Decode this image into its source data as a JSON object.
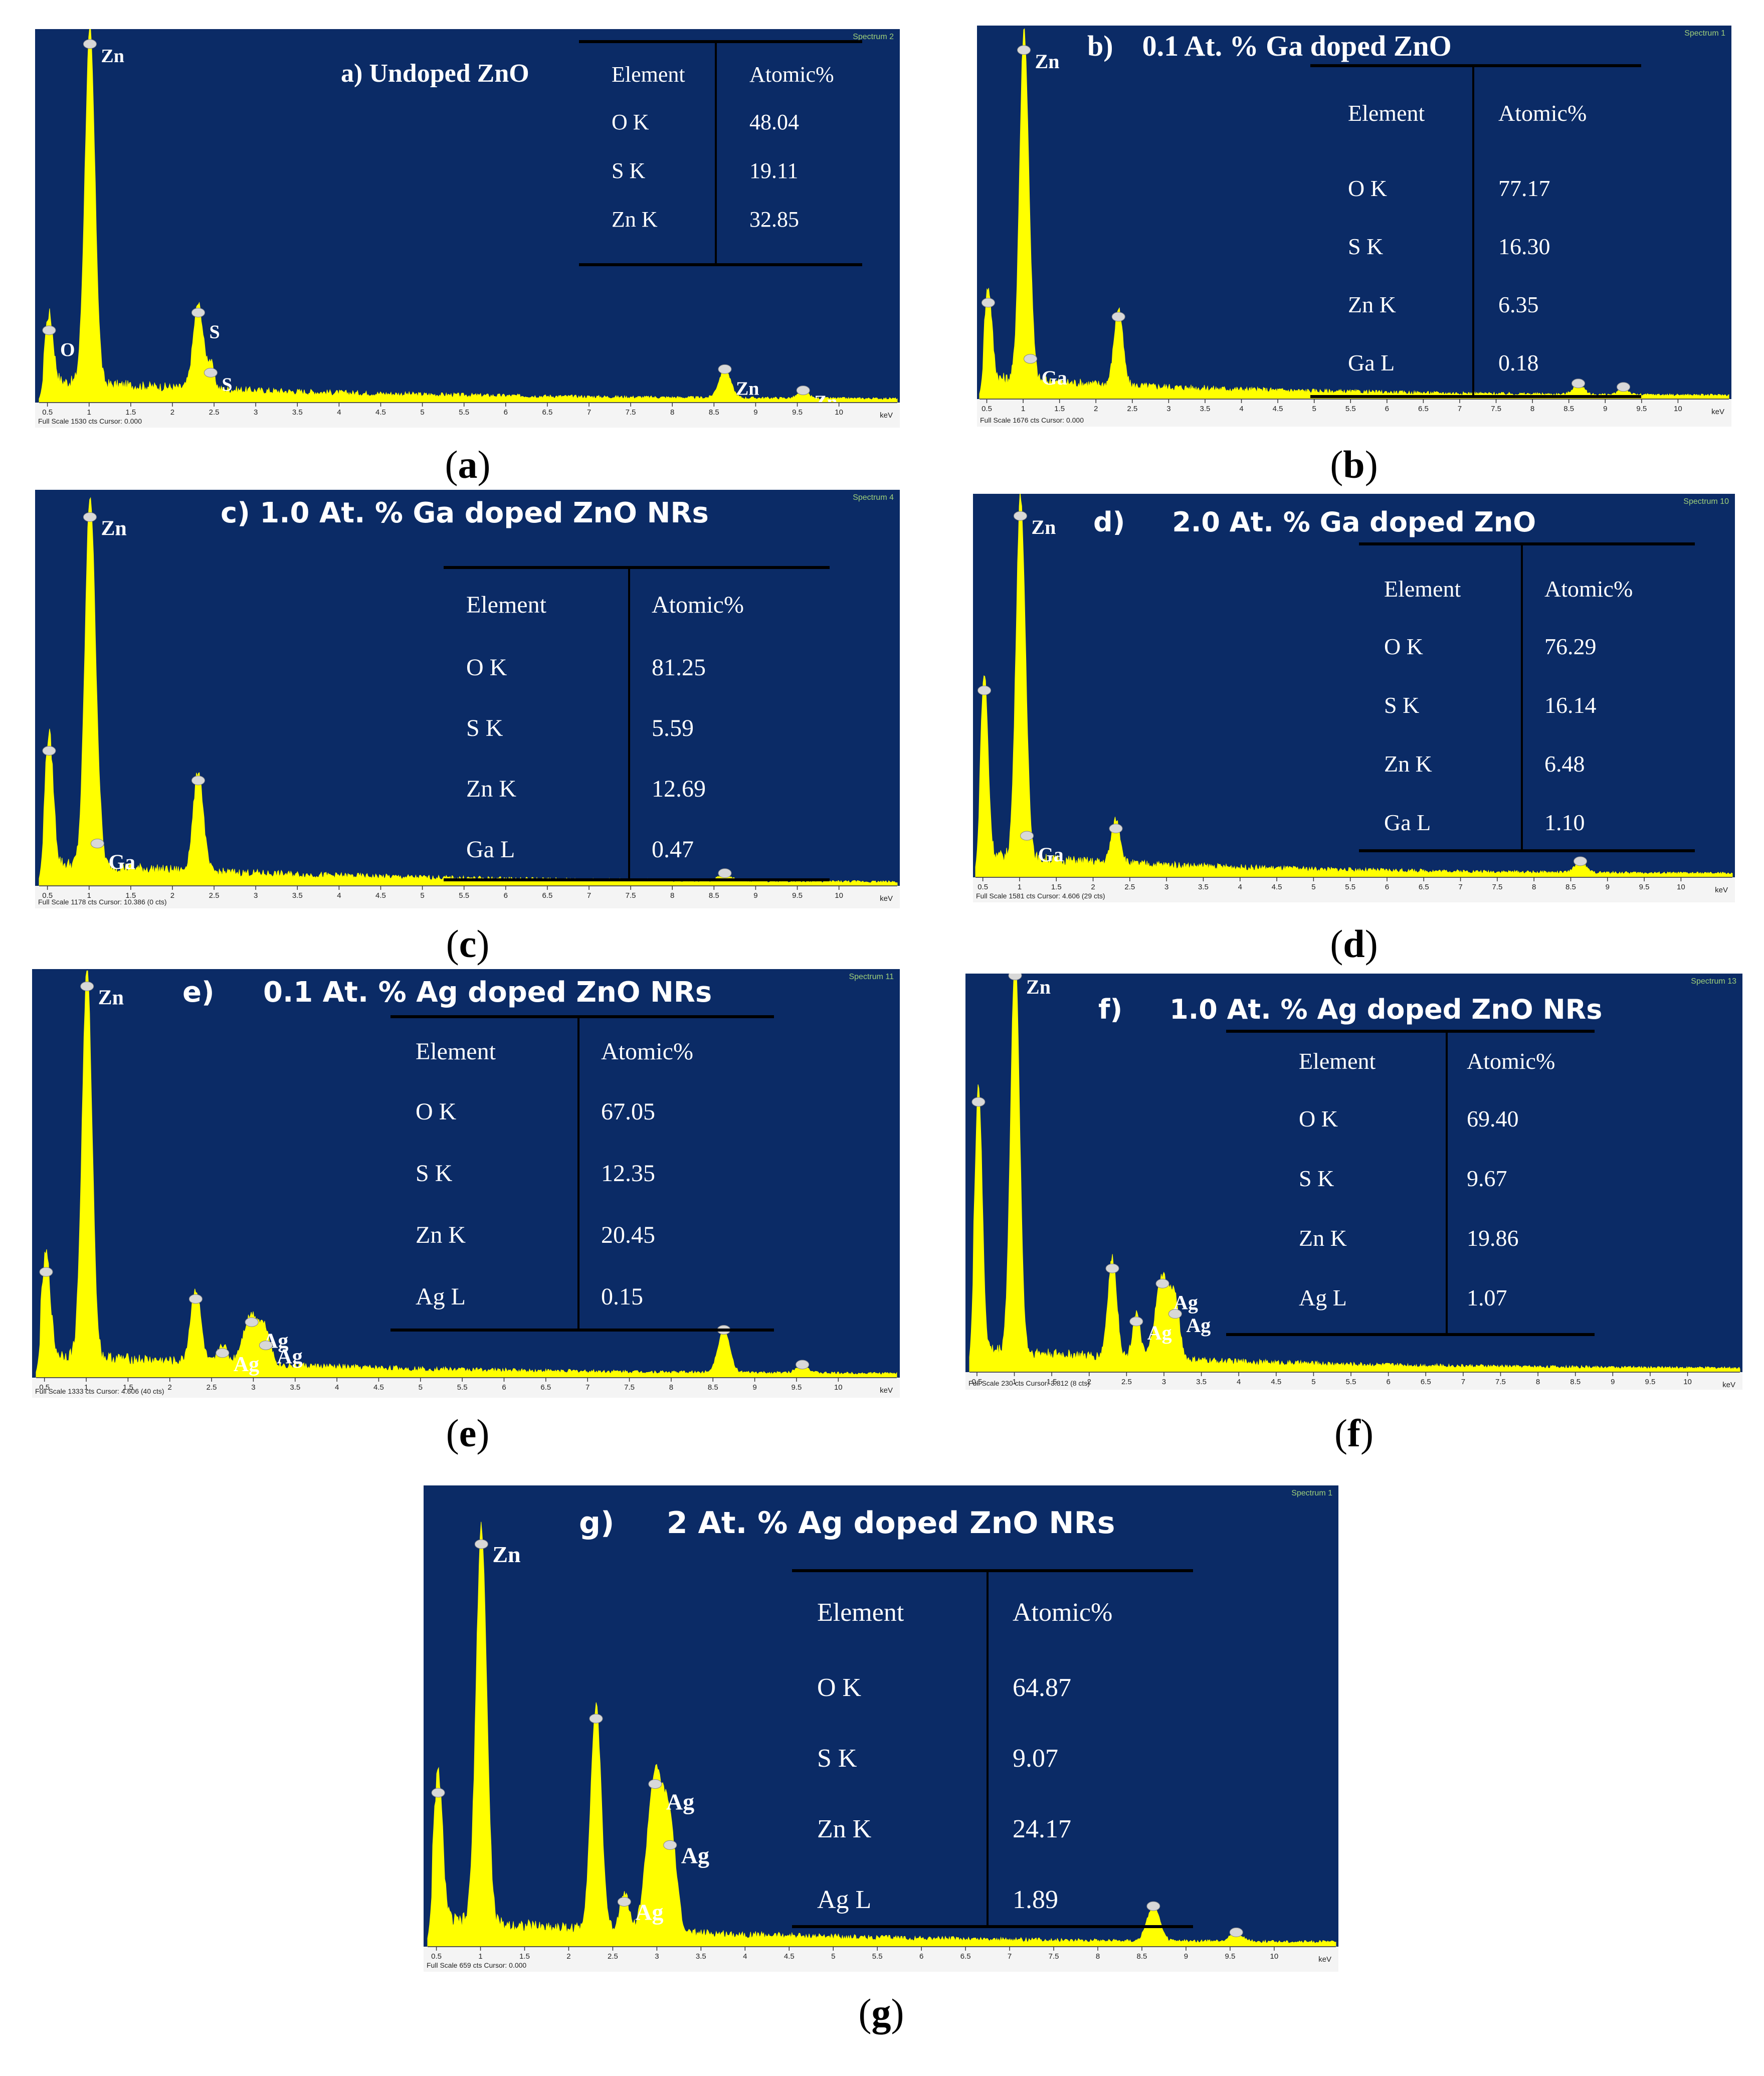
{
  "panels": [
    {
      "id": "a",
      "caption_letter": "a",
      "spectrum_label": "Spectrum 2",
      "footer_text": "Full Scale 1530 cts Cursor: 0.000",
      "unit_label": "keV",
      "chart_data": {
        "type": "line",
        "title": "a) Undoped ZnO",
        "xlabel": "keV",
        "xlim": [
          0.4,
          10.7
        ],
        "ylim": [
          0,
          1530
        ],
        "x_ticks": [
          "0.5",
          "1",
          "1.5",
          "2",
          "2.5",
          "3",
          "3.5",
          "4",
          "4.5",
          "5",
          "5.5",
          "6",
          "6.5",
          "7",
          "7.5",
          "8",
          "8.5",
          "9",
          "9.5",
          "10"
        ],
        "peaks": [
          {
            "x": 0.52,
            "height": 0.19,
            "width": 0.05,
            "label": "O"
          },
          {
            "x": 1.01,
            "height": 1.0,
            "width": 0.06,
            "label": "Zn"
          },
          {
            "x": 2.31,
            "height": 0.24,
            "width": 0.06,
            "label": "S"
          },
          {
            "x": 2.46,
            "height": 0.07,
            "width": 0.04,
            "label": "S"
          },
          {
            "x": 8.63,
            "height": 0.08,
            "width": 0.07,
            "label": "Zn"
          },
          {
            "x": 9.57,
            "height": 0.02,
            "width": 0.06,
            "label": "Zn"
          }
        ],
        "table": {
          "headers": [
            "Element",
            "Atomic%"
          ],
          "rows": [
            [
              "O K",
              "48.04"
            ],
            [
              "S K",
              "19.11"
            ],
            [
              "Zn K",
              "32.85"
            ]
          ]
        }
      }
    },
    {
      "id": "b",
      "caption_letter": "b",
      "spectrum_label": "Spectrum 1",
      "footer_text": "Full Scale 1676 cts Cursor: 0.000",
      "unit_label": "keV",
      "chart_data": {
        "type": "line",
        "title": "b)    0.1 At. % Ga doped ZnO",
        "xlabel": "keV",
        "xlim": [
          0.4,
          10.7
        ],
        "ylim": [
          0,
          1676
        ],
        "x_ticks": [
          "0.5",
          "1",
          "1.5",
          "2",
          "2.5",
          "3",
          "3.5",
          "4",
          "4.5",
          "5",
          "5.5",
          "6",
          "6.5",
          "7",
          "7.5",
          "8",
          "8.5",
          "9",
          "9.5",
          "10"
        ],
        "peaks": [
          {
            "x": 0.52,
            "height": 0.26,
            "width": 0.05,
            "label": ""
          },
          {
            "x": 1.01,
            "height": 0.98,
            "width": 0.06,
            "label": "Zn"
          },
          {
            "x": 1.1,
            "height": 0.1,
            "width": 0.05,
            "label": "Ga"
          },
          {
            "x": 2.31,
            "height": 0.22,
            "width": 0.06,
            "label": ""
          },
          {
            "x": 8.63,
            "height": 0.03,
            "width": 0.07,
            "label": ""
          },
          {
            "x": 9.25,
            "height": 0.02,
            "width": 0.06,
            "label": ""
          }
        ],
        "table": {
          "headers": [
            "Element",
            "Atomic%"
          ],
          "rows": [
            [
              "O K",
              "77.17"
            ],
            [
              "S K",
              "16.30"
            ],
            [
              "Zn K",
              "6.35"
            ],
            [
              "Ga L",
              "0.18"
            ]
          ]
        }
      }
    },
    {
      "id": "c",
      "caption_letter": "c",
      "spectrum_label": "Spectrum 4",
      "footer_text": "Full Scale 1178 cts Cursor: 10.386  (0 cts)",
      "unit_label": "keV",
      "chart_data": {
        "type": "line",
        "title": "c) 1.0 At. % Ga doped ZnO NRs",
        "xlabel": "keV",
        "xlim": [
          0.4,
          10.7
        ],
        "ylim": [
          0,
          1178
        ],
        "x_ticks": [
          "0.5",
          "1",
          "1.5",
          "2",
          "2.5",
          "3",
          "3.5",
          "4",
          "4.5",
          "5",
          "5.5",
          "6",
          "6.5",
          "7",
          "7.5",
          "8",
          "8.5",
          "9",
          "9.5",
          "10"
        ],
        "peaks": [
          {
            "x": 0.52,
            "height": 0.35,
            "width": 0.05,
            "label": ""
          },
          {
            "x": 1.01,
            "height": 0.98,
            "width": 0.06,
            "label": "Zn"
          },
          {
            "x": 1.1,
            "height": 0.1,
            "width": 0.05,
            "label": "Ga"
          },
          {
            "x": 2.31,
            "height": 0.27,
            "width": 0.06,
            "label": ""
          },
          {
            "x": 8.63,
            "height": 0.02,
            "width": 0.07,
            "label": ""
          }
        ],
        "table": {
          "headers": [
            "Element",
            "Atomic%"
          ],
          "rows": [
            [
              "O K",
              "81.25"
            ],
            [
              "S K",
              "5.59"
            ],
            [
              "Zn K",
              "12.69"
            ],
            [
              "Ga L",
              "0.47"
            ]
          ]
        }
      }
    },
    {
      "id": "d",
      "caption_letter": "d",
      "spectrum_label": "Spectrum 10",
      "footer_text": "Full Scale 1581 cts Cursor: 4.606  (29 cts)",
      "unit_label": "keV",
      "chart_data": {
        "type": "line",
        "title": "d)     2.0 At. % Ga doped ZnO",
        "xlabel": "keV",
        "xlim": [
          0.4,
          10.7
        ],
        "ylim": [
          0,
          1581
        ],
        "x_ticks": [
          "0.5",
          "1",
          "1.5",
          "2",
          "2.5",
          "3",
          "3.5",
          "4",
          "4.5",
          "5",
          "5.5",
          "6",
          "6.5",
          "7",
          "7.5",
          "8",
          "8.5",
          "9",
          "9.5",
          "10"
        ],
        "peaks": [
          {
            "x": 0.52,
            "height": 0.5,
            "width": 0.05,
            "label": ""
          },
          {
            "x": 1.01,
            "height": 0.98,
            "width": 0.06,
            "label": "Zn"
          },
          {
            "x": 1.1,
            "height": 0.1,
            "width": 0.05,
            "label": "Ga"
          },
          {
            "x": 2.31,
            "height": 0.12,
            "width": 0.06,
            "label": ""
          },
          {
            "x": 8.63,
            "height": 0.03,
            "width": 0.07,
            "label": ""
          }
        ],
        "table": {
          "headers": [
            "Element",
            "Atomic%"
          ],
          "rows": [
            [
              "O K",
              "76.29"
            ],
            [
              "S K",
              "16.14"
            ],
            [
              "Zn K",
              "6.48"
            ],
            [
              "Ga L",
              "1.10"
            ]
          ]
        }
      }
    },
    {
      "id": "e",
      "caption_letter": "e",
      "spectrum_label": "Spectrum 11",
      "footer_text": "Full Scale 1333 cts Cursor: 4.606  (40 cts)",
      "unit_label": "keV",
      "chart_data": {
        "type": "line",
        "title": "e)     0.1 At. % Ag doped ZnO NRs",
        "xlabel": "keV",
        "xlim": [
          0.4,
          10.7
        ],
        "ylim": [
          0,
          1333
        ],
        "x_ticks": [
          "0.5",
          "1",
          "1.5",
          "2",
          "2.5",
          "3",
          "3.5",
          "4",
          "4.5",
          "5",
          "5.5",
          "6",
          "6.5",
          "7",
          "7.5",
          "8",
          "8.5",
          "9",
          "9.5",
          "10"
        ],
        "peaks": [
          {
            "x": 0.52,
            "height": 0.26,
            "width": 0.05,
            "label": ""
          },
          {
            "x": 1.01,
            "height": 1.0,
            "width": 0.06,
            "label": "Zn"
          },
          {
            "x": 2.31,
            "height": 0.19,
            "width": 0.06,
            "label": ""
          },
          {
            "x": 2.63,
            "height": 0.05,
            "width": 0.05,
            "label": "Ag"
          },
          {
            "x": 2.98,
            "height": 0.13,
            "width": 0.1,
            "label": "Ag"
          },
          {
            "x": 3.15,
            "height": 0.07,
            "width": 0.06,
            "label": "Ag"
          },
          {
            "x": 8.63,
            "height": 0.11,
            "width": 0.07,
            "label": ""
          },
          {
            "x": 9.57,
            "height": 0.02,
            "width": 0.07,
            "label": ""
          }
        ],
        "table": {
          "headers": [
            "Element",
            "Atomic%"
          ],
          "rows": [
            [
              "O K",
              "67.05"
            ],
            [
              "S K",
              "12.35"
            ],
            [
              "Zn K",
              "20.45"
            ],
            [
              "Ag L",
              "0.15"
            ]
          ]
        }
      }
    },
    {
      "id": "f",
      "caption_letter": "f",
      "spectrum_label": "Spectrum 13",
      "footer_text": "Full Scale 230 cts Cursor: 3.812  (8 cts)",
      "unit_label": "keV",
      "chart_data": {
        "type": "line",
        "title": "f)     1.0 At. % Ag doped ZnO NRs",
        "xlabel": "keV",
        "xlim": [
          0.4,
          10.7
        ],
        "ylim": [
          0,
          230
        ],
        "x_ticks": [
          "0.5",
          "1",
          "1.5",
          "2",
          "2.5",
          "3",
          "3.5",
          "4",
          "4.5",
          "5",
          "5.5",
          "6",
          "6.5",
          "7",
          "7.5",
          "8",
          "8.5",
          "9",
          "9.5",
          "10"
        ],
        "peaks": [
          {
            "x": 0.52,
            "height": 0.7,
            "width": 0.05,
            "label": ""
          },
          {
            "x": 1.01,
            "height": 1.05,
            "width": 0.06,
            "label": "Zn"
          },
          {
            "x": 2.31,
            "height": 0.26,
            "width": 0.06,
            "label": ""
          },
          {
            "x": 2.63,
            "height": 0.12,
            "width": 0.05,
            "label": "Ag"
          },
          {
            "x": 2.98,
            "height": 0.22,
            "width": 0.09,
            "label": "Ag"
          },
          {
            "x": 3.15,
            "height": 0.14,
            "width": 0.06,
            "label": "Ag"
          }
        ],
        "table": {
          "headers": [
            "Element",
            "Atomic%"
          ],
          "rows": [
            [
              "O K",
              "69.40"
            ],
            [
              "S K",
              "9.67"
            ],
            [
              "Zn K",
              "19.86"
            ],
            [
              "Ag L",
              "1.07"
            ]
          ]
        }
      }
    },
    {
      "id": "g",
      "caption_letter": "g",
      "spectrum_label": "Spectrum 1",
      "footer_text": "Full Scale 659 cts Cursor: 0.000",
      "unit_label": "keV",
      "chart_data": {
        "type": "line",
        "title": "g)     2 At. % Ag doped ZnO NRs",
        "xlabel": "keV",
        "xlim": [
          0.4,
          10.7
        ],
        "ylim": [
          0,
          659
        ],
        "x_ticks": [
          "0.5",
          "1",
          "1.5",
          "2",
          "2.5",
          "3",
          "3.5",
          "4",
          "4.5",
          "5",
          "5.5",
          "6",
          "6.5",
          "7",
          "7.5",
          "8",
          "8.5",
          "9",
          "9.5",
          "10"
        ],
        "peaks": [
          {
            "x": 0.52,
            "height": 0.34,
            "width": 0.05,
            "label": ""
          },
          {
            "x": 1.01,
            "height": 0.91,
            "width": 0.06,
            "label": "Zn"
          },
          {
            "x": 2.31,
            "height": 0.51,
            "width": 0.06,
            "label": ""
          },
          {
            "x": 2.63,
            "height": 0.09,
            "width": 0.05,
            "label": "Ag"
          },
          {
            "x": 2.98,
            "height": 0.36,
            "width": 0.09,
            "label": "Ag"
          },
          {
            "x": 3.15,
            "height": 0.22,
            "width": 0.07,
            "label": "Ag"
          },
          {
            "x": 8.63,
            "height": 0.08,
            "width": 0.07,
            "label": ""
          },
          {
            "x": 9.57,
            "height": 0.02,
            "width": 0.07,
            "label": ""
          }
        ],
        "table": {
          "headers": [
            "Element",
            "Atomic%"
          ],
          "rows": [
            [
              "O K",
              "64.87"
            ],
            [
              "S K",
              "9.07"
            ],
            [
              "Zn K",
              "24.17"
            ],
            [
              "Ag L",
              "1.89"
            ]
          ]
        }
      }
    }
  ],
  "colors": {
    "background": "#0b2b66",
    "spectrum": "#ffff00",
    "axis_text": "#ffffff",
    "axis_strip": "#f4f4f4",
    "table_rule": "#000000",
    "caption_text": "#000000",
    "marker": "#d8d8d8"
  }
}
